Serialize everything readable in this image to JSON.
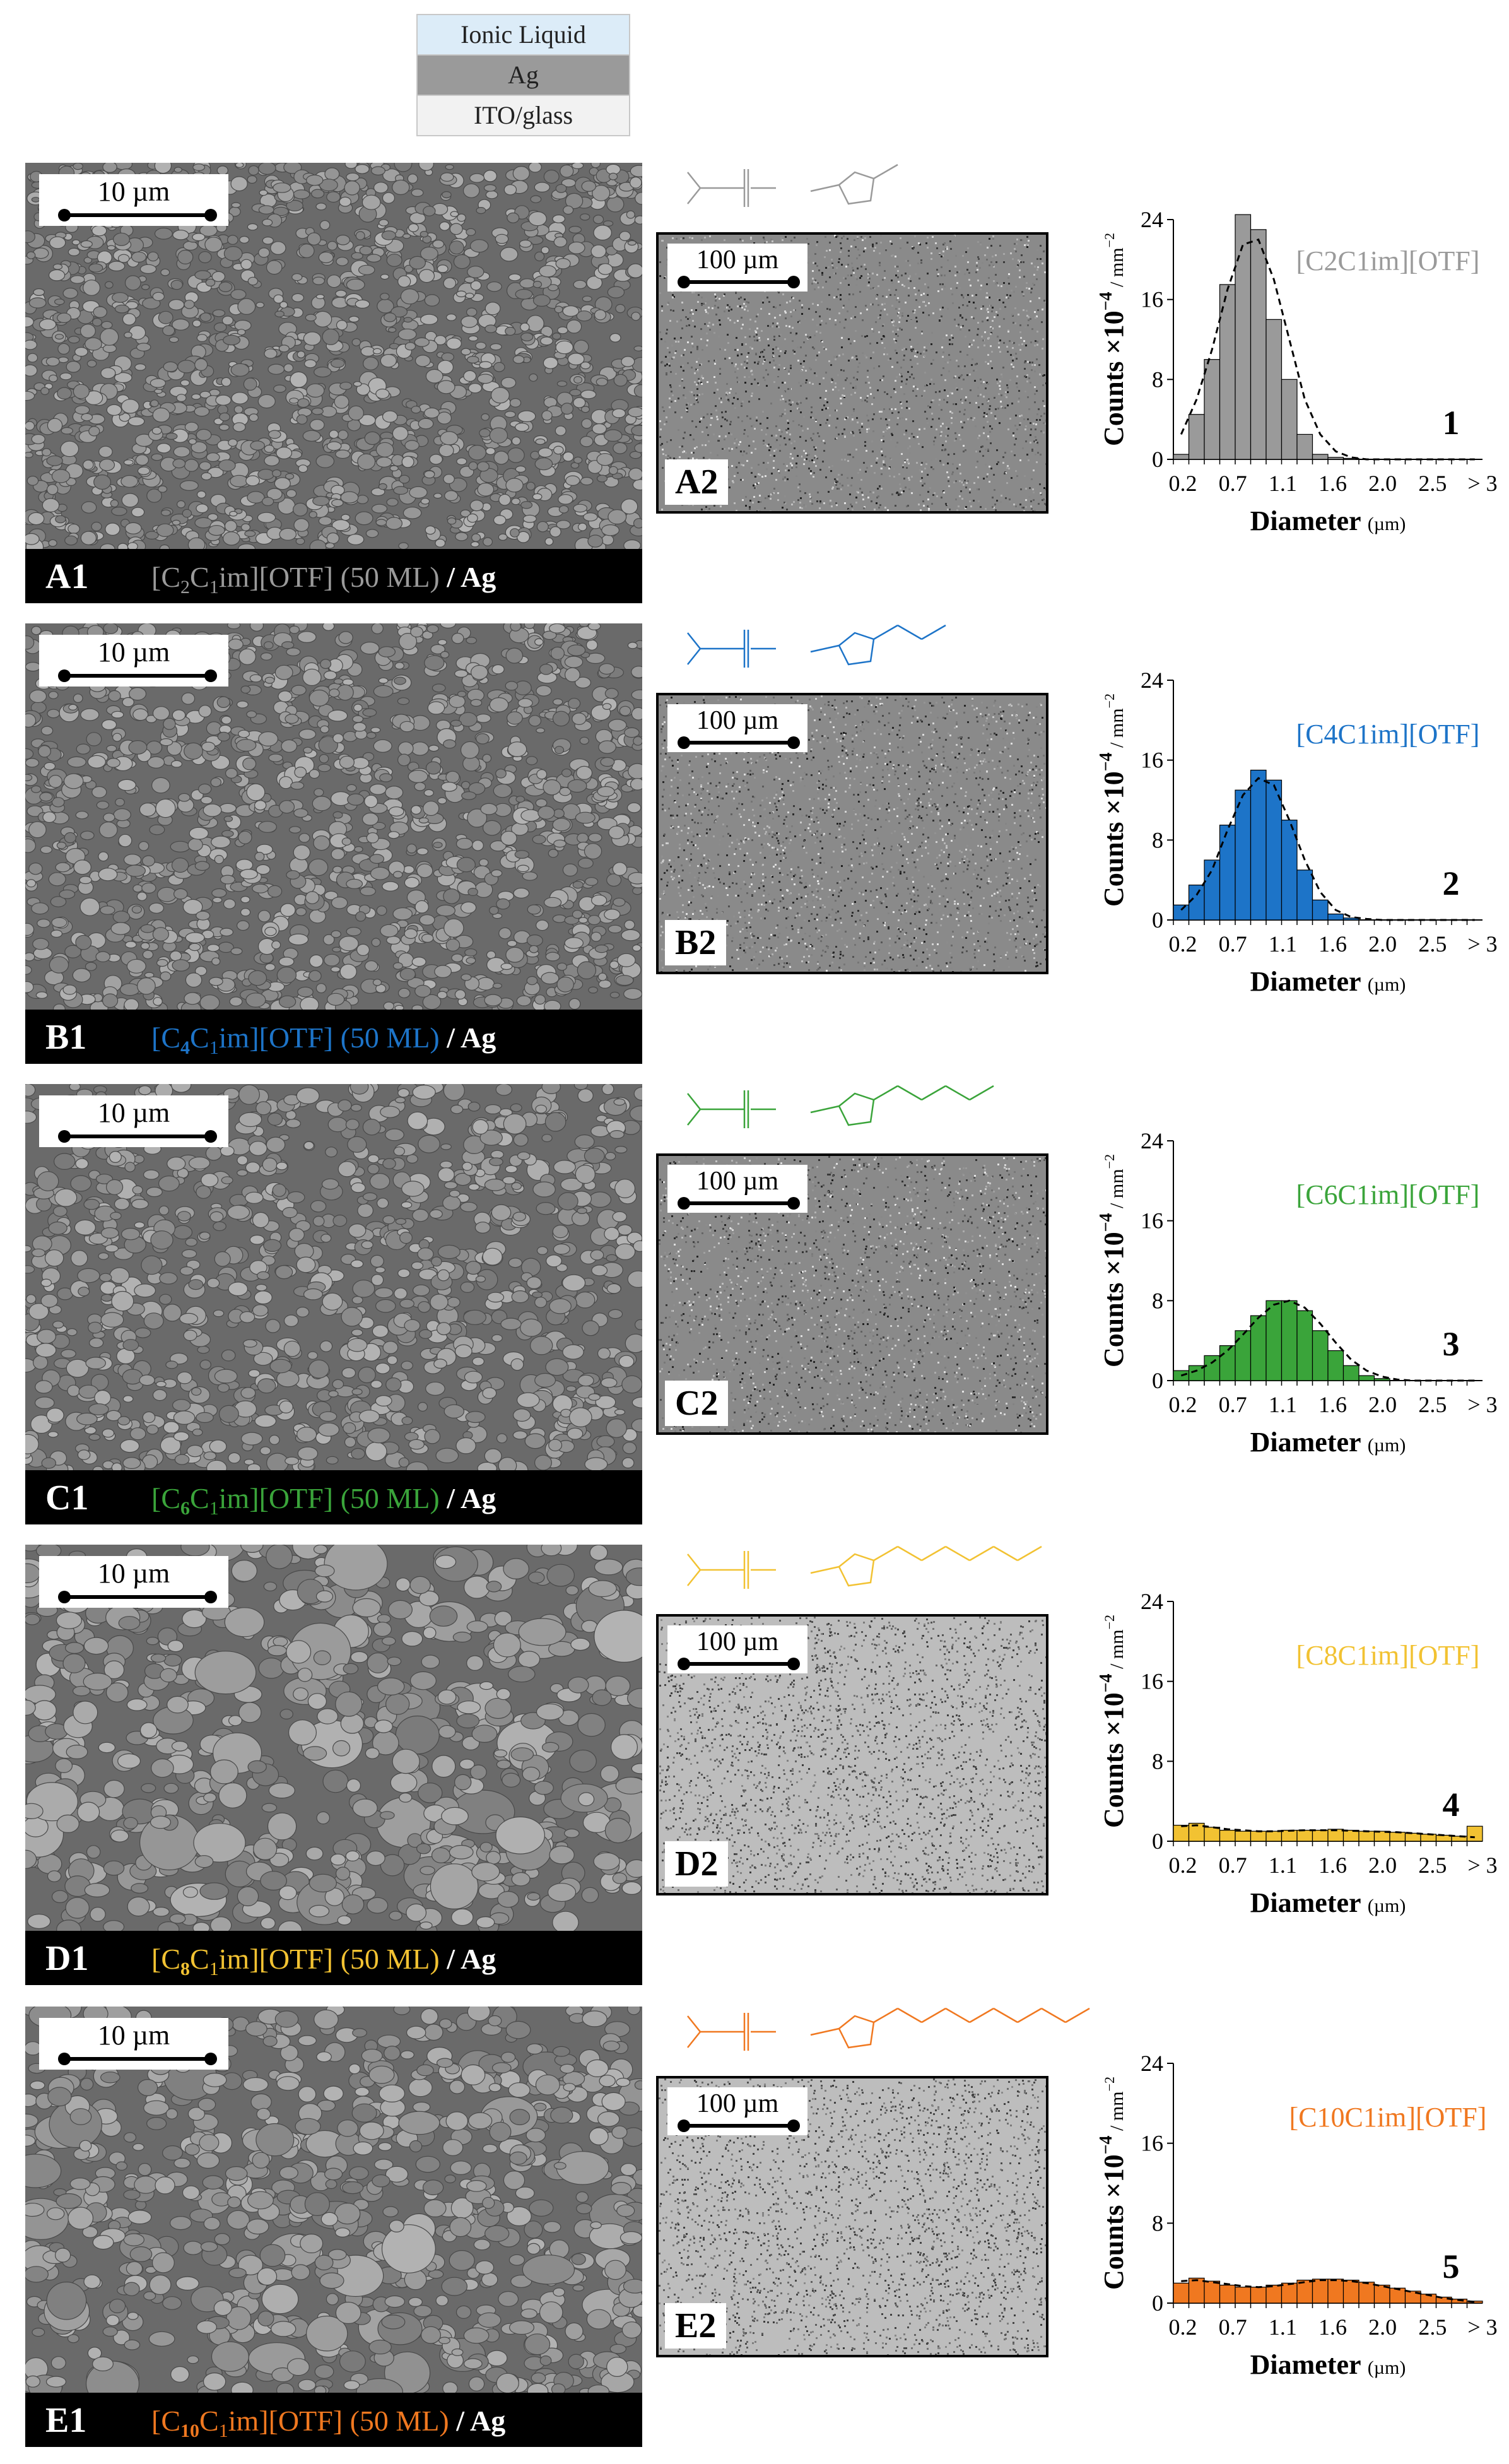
{
  "layer_stack": [
    "Ionic Liquid",
    "Ag",
    "ITO/glass"
  ],
  "layer_colors": [
    "#dcecf8",
    "#9a9a9a",
    "#f2f2f2"
  ],
  "sem_scale_label": "10 µm",
  "optical_scale_label": "100 µm",
  "panels": [
    {
      "sem_code": "A1",
      "opt_code": "A2",
      "il_prefix": "[C",
      "il_sub1": "2",
      "il_mid": "C",
      "il_sub2": "1",
      "il_suffix": "im][OTF]",
      "coverage": " (50 ML) ",
      "metal": "/ Ag",
      "color": "#9a9a9a",
      "hist_number": "1",
      "tone": "dark"
    },
    {
      "sem_code": "B1",
      "opt_code": "B2",
      "il_prefix": "[C",
      "il_sub1": "4",
      "il_mid": "C",
      "il_sub2": "1",
      "il_suffix": "im][OTF]",
      "coverage": " (50 ML) ",
      "metal": "/ Ag",
      "color": "#1d74c8",
      "hist_number": "2",
      "tone": "dark"
    },
    {
      "sem_code": "C1",
      "opt_code": "C2",
      "il_prefix": "[C",
      "il_sub1": "6",
      "il_mid": "C",
      "il_sub2": "1",
      "il_suffix": "im][OTF]",
      "coverage": " (50 ML) ",
      "metal": "/ Ag",
      "color": "#3aa43a",
      "hist_number": "3",
      "tone": "dark"
    },
    {
      "sem_code": "D1",
      "opt_code": "D2",
      "il_prefix": "[C",
      "il_sub1": "8",
      "il_mid": "C",
      "il_sub2": "1",
      "il_suffix": "im][OTF]",
      "coverage": " (50 ML) ",
      "metal": "/ Ag",
      "color": "#f2c232",
      "hist_number": "4",
      "tone": "light"
    },
    {
      "sem_code": "E1",
      "opt_code": "E2",
      "il_prefix": "[C",
      "il_sub1": "10",
      "il_mid": "C",
      "il_sub2": "1",
      "il_suffix": "im][OTF]",
      "coverage": " (50 ML) ",
      "metal": "/ Ag",
      "color": "#f07820",
      "hist_number": "5",
      "tone": "light"
    }
  ],
  "chart_data": [
    {
      "type": "bar",
      "series_label": "[C2C1im][OTF]",
      "xlabel": "Diameter",
      "xunit": "(µm)",
      "ylabel": "Counts ×10",
      "yunit": "/ mm",
      "ylim": [
        0,
        24
      ],
      "yticks": [
        0,
        8,
        16,
        24
      ],
      "xticks": [
        "0.2",
        "0.7",
        "1.1",
        "1.6",
        "2.0",
        "2.5",
        "> 3"
      ],
      "values": [
        0.5,
        4.5,
        10,
        17.5,
        24.5,
        23,
        14,
        8,
        2.5,
        0.5,
        0.2,
        0.1,
        0,
        0,
        0,
        0,
        0,
        0,
        0,
        0
      ],
      "fit": [
        2.5,
        6,
        11,
        17,
        21.5,
        22,
        18,
        12,
        6,
        2.5,
        0.8,
        0.2,
        0,
        0,
        0,
        0,
        0,
        0,
        0,
        0
      ]
    },
    {
      "type": "bar",
      "series_label": "[C4C1im][OTF]",
      "xlabel": "Diameter",
      "xunit": "(µm)",
      "ylabel": "Counts ×10",
      "yunit": "/ mm",
      "ylim": [
        0,
        24
      ],
      "yticks": [
        0,
        8,
        16,
        24
      ],
      "xticks": [
        "0.2",
        "0.7",
        "1.1",
        "1.6",
        "2.0",
        "2.5",
        "> 3"
      ],
      "values": [
        1.5,
        3.5,
        6,
        9.5,
        13,
        15,
        14,
        10,
        5,
        2,
        0.6,
        0.2,
        0,
        0,
        0,
        0,
        0,
        0,
        0,
        0
      ],
      "fit": [
        1,
        2.5,
        5,
        9,
        12.5,
        14.2,
        13.5,
        10,
        6,
        2.8,
        1,
        0.3,
        0.1,
        0,
        0,
        0,
        0,
        0,
        0,
        0
      ]
    },
    {
      "type": "bar",
      "series_label": "[C6C1im][OTF]",
      "xlabel": "Diameter",
      "xunit": "(µm)",
      "ylabel": "Counts ×10",
      "yunit": "/ mm",
      "ylim": [
        0,
        24
      ],
      "yticks": [
        0,
        8,
        16,
        24
      ],
      "xticks": [
        "0.2",
        "0.7",
        "1.1",
        "1.6",
        "2.0",
        "2.5",
        "> 3"
      ],
      "values": [
        1,
        1.5,
        2.5,
        3.5,
        5,
        6.5,
        8,
        8,
        7,
        5,
        3,
        1.5,
        0.5,
        0.2,
        0,
        0,
        0,
        0,
        0,
        0
      ],
      "fit": [
        0.5,
        1,
        1.8,
        3,
        4.6,
        6.3,
        7.6,
        8,
        7.3,
        5.7,
        3.8,
        2.1,
        1,
        0.4,
        0.1,
        0,
        0,
        0,
        0,
        0
      ]
    },
    {
      "type": "bar",
      "series_label": "[C8C1im][OTF]",
      "xlabel": "Diameter",
      "xunit": "(µm)",
      "ylabel": "Counts ×10",
      "yunit": "/ mm",
      "ylim": [
        0,
        24
      ],
      "yticks": [
        0,
        8,
        16,
        24
      ],
      "xticks": [
        "0.2",
        "0.7",
        "1.1",
        "1.6",
        "2.0",
        "2.5",
        "> 3"
      ],
      "values": [
        1.6,
        1.8,
        1.4,
        1.1,
        1,
        1,
        1,
        1.1,
        1.1,
        1.1,
        1.2,
        1.1,
        1,
        1,
        0.9,
        0.8,
        0.7,
        0.6,
        0.5,
        1.5
      ],
      "fit": [
        1.5,
        1.6,
        1.4,
        1.2,
        1.1,
        1,
        1,
        1.05,
        1.1,
        1.1,
        1.1,
        1.05,
        1,
        0.95,
        0.9,
        0.8,
        0.7,
        0.6,
        0.5,
        0.4
      ]
    },
    {
      "type": "bar",
      "series_label": "[C10C1im][OTF]",
      "xlabel": "Diameter",
      "xunit": "(µm)",
      "ylabel": "Counts ×10",
      "yunit": "/ mm",
      "ylim": [
        0,
        24
      ],
      "yticks": [
        0,
        8,
        16,
        24
      ],
      "xticks": [
        "0.2",
        "0.7",
        "1.1",
        "1.6",
        "2.0",
        "2.5",
        "> 3"
      ],
      "values": [
        2,
        2.5,
        2.2,
        1.8,
        1.6,
        1.6,
        1.8,
        2,
        2.3,
        2.4,
        2.4,
        2.3,
        2.1,
        1.8,
        1.5,
        1.2,
        0.9,
        0.6,
        0.4,
        0.2
      ],
      "fit": [
        2.2,
        2.3,
        2.1,
        1.9,
        1.7,
        1.6,
        1.7,
        1.9,
        2.1,
        2.3,
        2.3,
        2.2,
        2,
        1.7,
        1.4,
        1.1,
        0.8,
        0.5,
        0.3,
        0.1
      ]
    }
  ],
  "hist_axis_exponents": {
    "y_exp": "−4",
    "unit_exp": "−2"
  }
}
